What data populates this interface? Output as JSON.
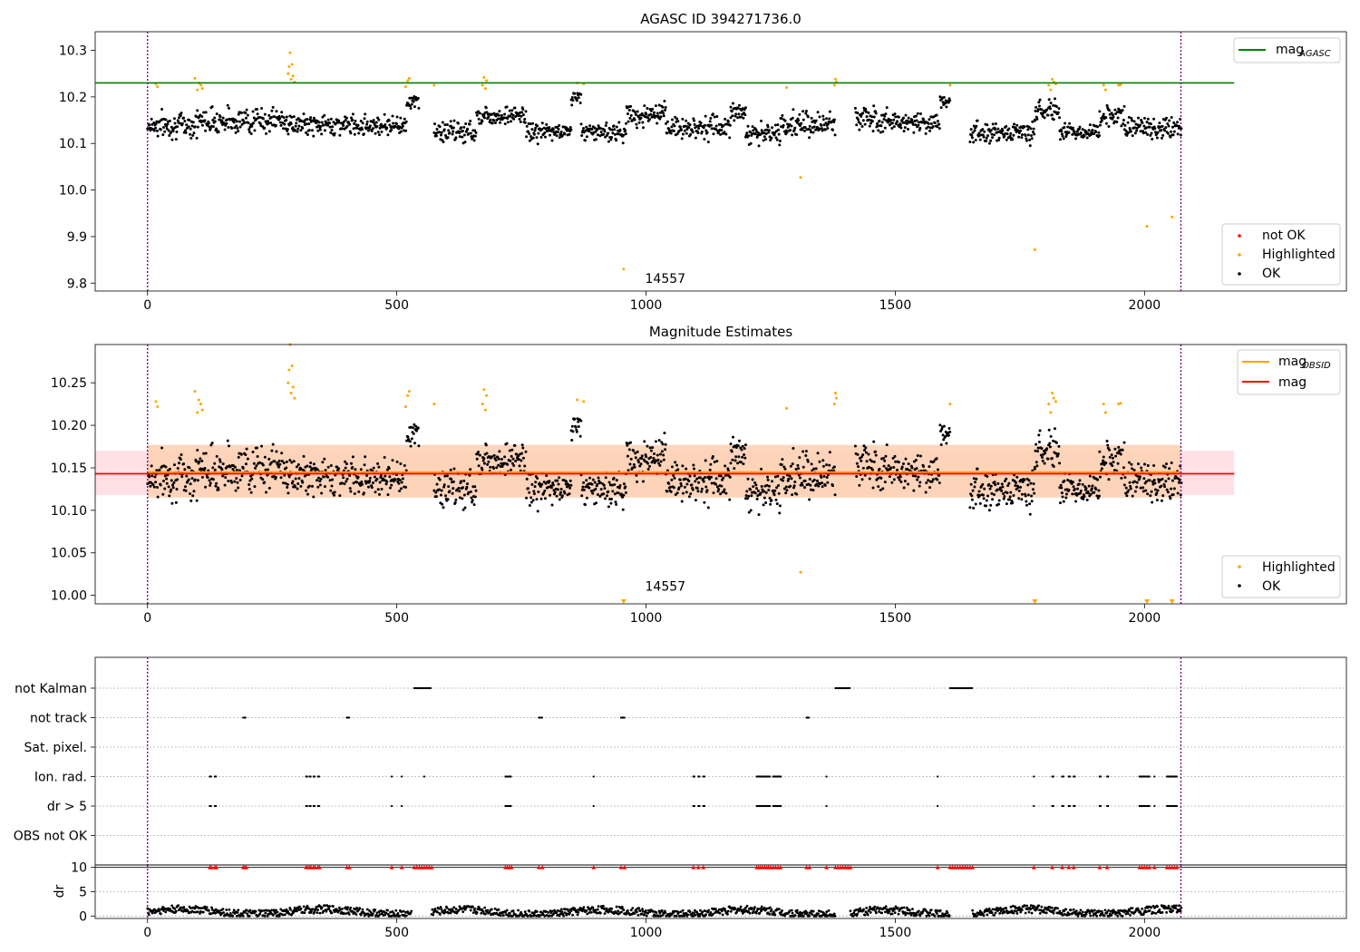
{
  "figure": {
    "annotation": "14557"
  },
  "colors": {
    "ok": "#000000",
    "highlighted": "#ffa500",
    "not_ok": "#ff0000",
    "agasc_line": "#008000",
    "obsid_line": "#ffa500",
    "mean_line": "#ff0000",
    "band_outer": "#ffdde2",
    "band_inner": "#fdd2b5",
    "vline": "#800080"
  },
  "chart_data": [
    {
      "type": "scatter",
      "title": "AGASC ID 394271736.0",
      "xlim": [
        -105,
        2405
      ],
      "ylim": [
        9.783,
        10.34
      ],
      "xticks": [
        0,
        500,
        1000,
        1500,
        2000
      ],
      "yticks": [
        9.8,
        9.9,
        10.0,
        10.1,
        10.2,
        10.3
      ],
      "hline": {
        "name": "mag_AGASC",
        "value": 10.23,
        "x_range": [
          -105,
          2180
        ]
      },
      "vlines": [
        0,
        2073
      ],
      "legend_top": {
        "position": "top-right",
        "entries": [
          {
            "label": "mag",
            "sub": "AGASC",
            "kind": "line",
            "color_key": "agasc_line"
          }
        ]
      },
      "legend_bottom": {
        "position": "bottom-right",
        "entries": [
          {
            "label": "not OK",
            "kind": "marker",
            "color_key": "not_ok"
          },
          {
            "label": "Highlighted",
            "kind": "marker",
            "color_key": "highlighted"
          },
          {
            "label": "OK",
            "kind": "marker",
            "color_key": "ok"
          }
        ]
      },
      "annotation": {
        "text_ref": "figure.annotation",
        "x": 1000,
        "y": 9.81
      },
      "series": [
        {
          "name": "OK",
          "kind": "generated",
          "segments": [
            {
              "x": [
                0,
                100
              ],
              "base": 10.14,
              "amp": 0.04
            },
            {
              "x": [
                100,
                280
              ],
              "base": 10.15,
              "amp": 0.04
            },
            {
              "x": [
                280,
                520
              ],
              "base": 10.14,
              "amp": 0.03
            },
            {
              "x": [
                520,
                545
              ],
              "base": 10.19,
              "amp": 0.02
            },
            {
              "x": [
                575,
                660
              ],
              "base": 10.125,
              "amp": 0.035
            },
            {
              "x": [
                660,
                760
              ],
              "base": 10.16,
              "amp": 0.03
            },
            {
              "x": [
                760,
                850
              ],
              "base": 10.125,
              "amp": 0.03
            },
            {
              "x": [
                850,
                870
              ],
              "base": 10.2,
              "amp": 0.02
            },
            {
              "x": [
                870,
                960
              ],
              "base": 10.125,
              "amp": 0.03
            },
            {
              "x": [
                960,
                1040
              ],
              "base": 10.16,
              "amp": 0.035
            },
            {
              "x": [
                1040,
                1170
              ],
              "base": 10.135,
              "amp": 0.035
            },
            {
              "x": [
                1170,
                1200
              ],
              "base": 10.17,
              "amp": 0.03
            },
            {
              "x": [
                1200,
                1270
              ],
              "base": 10.12,
              "amp": 0.03
            },
            {
              "x": [
                1270,
                1380
              ],
              "base": 10.14,
              "amp": 0.04
            },
            {
              "x": [
                1420,
                1490
              ],
              "base": 10.155,
              "amp": 0.04
            },
            {
              "x": [
                1490,
                1590
              ],
              "base": 10.145,
              "amp": 0.03
            },
            {
              "x": [
                1590,
                1610
              ],
              "base": 10.19,
              "amp": 0.02
            },
            {
              "x": [
                1650,
                1780
              ],
              "base": 10.125,
              "amp": 0.04
            },
            {
              "x": [
                1780,
                1830
              ],
              "base": 10.17,
              "amp": 0.03
            },
            {
              "x": [
                1830,
                1910
              ],
              "base": 10.125,
              "amp": 0.025
            },
            {
              "x": [
                1910,
                1960
              ],
              "base": 10.16,
              "amp": 0.03
            },
            {
              "x": [
                1960,
                2075
              ],
              "base": 10.135,
              "amp": 0.035
            }
          ]
        },
        {
          "name": "Highlighted",
          "kind": "points",
          "x": [
            17,
            20,
            95,
            100,
            103,
            107,
            110,
            282,
            284,
            286,
            288,
            290,
            292,
            295,
            518,
            522,
            525,
            575,
            672,
            675,
            678,
            680,
            862,
            875,
            1282,
            1310,
            1378,
            1380,
            1382,
            1610,
            1780,
            1808,
            1812,
            1815,
            1818,
            1822,
            1918,
            1922,
            1948,
            1952,
            955,
            2005,
            2055
          ],
          "y": [
            10.228,
            10.222,
            10.24,
            10.215,
            10.23,
            10.225,
            10.218,
            10.25,
            10.265,
            10.295,
            10.238,
            10.27,
            10.245,
            10.232,
            10.222,
            10.235,
            10.24,
            10.225,
            10.225,
            10.242,
            10.218,
            10.235,
            10.23,
            10.228,
            10.22,
            10.027,
            10.225,
            10.238,
            10.232,
            10.225,
            9.872,
            10.225,
            10.215,
            10.238,
            10.232,
            10.228,
            10.225,
            10.215,
            10.225,
            10.226,
            9.83,
            9.922,
            9.942
          ]
        }
      ]
    },
    {
      "type": "scatter",
      "title": "Magnitude Estimates",
      "xlim": [
        -105,
        2405
      ],
      "ylim": [
        9.99,
        10.295
      ],
      "xticks": [
        0,
        500,
        1000,
        1500,
        2000
      ],
      "yticks": [
        10.0,
        10.05,
        10.1,
        10.15,
        10.2,
        10.25
      ],
      "vlines": [
        0,
        2073
      ],
      "bands": [
        {
          "y": [
            10.118,
            10.17
          ],
          "x_range": [
            -105,
            2180
          ],
          "color_key": "band_outer"
        },
        {
          "y": [
            10.115,
            10.177
          ],
          "x_range": [
            0,
            2073
          ],
          "color_key": "band_inner"
        }
      ],
      "lines": [
        {
          "name": "mag_OBSID",
          "value": 10.145,
          "x_range": [
            0,
            2073
          ],
          "color_key": "obsid_line"
        },
        {
          "name": "mag",
          "value": 10.143,
          "x_range": [
            -105,
            2180
          ],
          "color_key": "mean_line"
        }
      ],
      "legend_top": {
        "position": "top-right",
        "entries": [
          {
            "label": "mag",
            "sub": "OBSID",
            "kind": "line",
            "color_key": "obsid_line"
          },
          {
            "label": "mag",
            "kind": "line",
            "color_key": "mean_line"
          }
        ]
      },
      "legend_bottom": {
        "position": "bottom-right",
        "entries": [
          {
            "label": "Highlighted",
            "kind": "marker",
            "color_key": "highlighted"
          },
          {
            "label": "OK",
            "kind": "marker",
            "color_key": "ok"
          }
        ]
      },
      "annotation": {
        "text_ref": "figure.annotation",
        "x": 1000,
        "y": 10.002
      },
      "clipped_markers": [
        955,
        1780,
        2005,
        2055
      ],
      "series_ref": 0
    },
    {
      "type": "scatter",
      "title": "",
      "xlim": [
        -105,
        2405
      ],
      "xticks": [
        0,
        500,
        1000,
        1500,
        2000
      ],
      "vlines": [
        0,
        2073
      ],
      "flag_rows": [
        {
          "label": "not Kalman",
          "ranges": [
            [
              535,
              570
            ],
            [
              1380,
              1410
            ],
            [
              1610,
              1655
            ]
          ]
        },
        {
          "label": "not track",
          "ranges": [
            [
              192,
              198
            ],
            [
              400,
              405
            ],
            [
              785,
              792
            ],
            [
              950,
              957
            ],
            [
              1322,
              1328
            ]
          ]
        },
        {
          "label": "Sat. pixel.",
          "ranges": []
        },
        {
          "label": "Ion. rad.",
          "ranges": [
            [
              125,
              128
            ],
            [
              135,
              138
            ],
            [
              318,
              321
            ],
            [
              325,
              328
            ],
            [
              333,
              336
            ],
            [
              342,
              345
            ],
            [
              490,
              492
            ],
            [
              510,
              512
            ],
            [
              555,
              557
            ],
            [
              718,
              730
            ],
            [
              895,
              897
            ],
            [
              1095,
              1098
            ],
            [
              1105,
              1108
            ],
            [
              1115,
              1118
            ],
            [
              1222,
              1250
            ],
            [
              1255,
              1272
            ],
            [
              1362,
              1364
            ],
            [
              1585,
              1587
            ],
            [
              1778,
              1780
            ],
            [
              1815,
              1818
            ],
            [
              1835,
              1838
            ],
            [
              1848,
              1851
            ],
            [
              1858,
              1861
            ],
            [
              1910,
              1913
            ],
            [
              1925,
              1928
            ],
            [
              1990,
              2010
            ],
            [
              2020,
              2022
            ],
            [
              2045,
              2065
            ]
          ]
        },
        {
          "label": "dr > 5",
          "ranges": [
            [
              125,
              128
            ],
            [
              135,
              138
            ],
            [
              318,
              321
            ],
            [
              325,
              328
            ],
            [
              333,
              336
            ],
            [
              342,
              345
            ],
            [
              490,
              492
            ],
            [
              510,
              512
            ],
            [
              718,
              730
            ],
            [
              895,
              897
            ],
            [
              1095,
              1098
            ],
            [
              1105,
              1108
            ],
            [
              1115,
              1118
            ],
            [
              1222,
              1250
            ],
            [
              1255,
              1272
            ],
            [
              1362,
              1364
            ],
            [
              1585,
              1587
            ],
            [
              1778,
              1780
            ],
            [
              1815,
              1818
            ],
            [
              1835,
              1838
            ],
            [
              1848,
              1851
            ],
            [
              1858,
              1861
            ],
            [
              1910,
              1913
            ],
            [
              1925,
              1928
            ],
            [
              1990,
              2010
            ],
            [
              2020,
              2022
            ],
            [
              2045,
              2065
            ]
          ]
        },
        {
          "label": "OBS not OK",
          "ranges": []
        }
      ]
    },
    {
      "type": "scatter",
      "ylabel": "dr",
      "xlim": [
        -105,
        2405
      ],
      "ylim": [
        -0.5,
        10.5
      ],
      "yticks": [
        0,
        5,
        10
      ],
      "xticks": [
        0,
        500,
        1000,
        1500,
        2000
      ],
      "vlines": [
        0,
        2073
      ],
      "hline": 10,
      "clipped_markers": [
        125,
        128,
        135,
        138,
        192,
        195,
        198,
        318,
        321,
        325,
        328,
        333,
        336,
        342,
        345,
        400,
        405,
        490,
        510,
        535,
        540,
        545,
        550,
        555,
        560,
        565,
        570,
        718,
        722,
        726,
        730,
        785,
        792,
        895,
        950,
        957,
        1095,
        1105,
        1115,
        1222,
        1226,
        1230,
        1234,
        1238,
        1242,
        1246,
        1250,
        1255,
        1260,
        1265,
        1270,
        1322,
        1328,
        1362,
        1380,
        1385,
        1390,
        1395,
        1400,
        1405,
        1410,
        1585,
        1610,
        1615,
        1620,
        1625,
        1630,
        1635,
        1640,
        1645,
        1650,
        1655,
        1778,
        1815,
        1835,
        1848,
        1858,
        1910,
        1925,
        1990,
        1995,
        2000,
        2005,
        2010,
        2020,
        2045,
        2050,
        2055,
        2060,
        2065
      ],
      "dr_segments": [
        [
          0,
          530,
          0.9
        ],
        [
          570,
          1380,
          0.8
        ],
        [
          1410,
          1610,
          0.7
        ],
        [
          1655,
          2075,
          0.9
        ]
      ]
    }
  ]
}
